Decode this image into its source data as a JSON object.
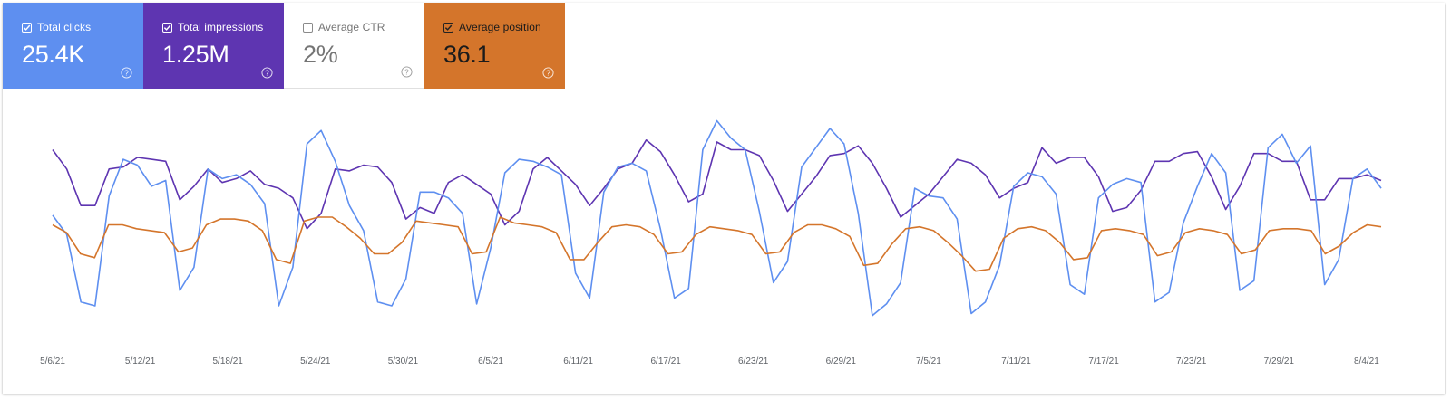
{
  "metrics": [
    {
      "label": "Total clicks",
      "value": "25.4K",
      "checked": true,
      "color": "#5e8ff0"
    },
    {
      "label": "Total impressions",
      "value": "1.25M",
      "checked": true,
      "color": "#5e35b1"
    },
    {
      "label": "Average CTR",
      "value": "2%",
      "checked": false,
      "color": "#ffffff"
    },
    {
      "label": "Average position",
      "value": "36.1",
      "checked": true,
      "color": "#d4752b"
    }
  ],
  "chart_data": {
    "type": "line",
    "x_tick_labels": [
      "5/6/21",
      "5/12/21",
      "5/18/21",
      "5/24/21",
      "5/30/21",
      "6/5/21",
      "6/11/21",
      "6/17/21",
      "6/23/21",
      "6/29/21",
      "7/5/21",
      "7/11/21",
      "7/17/21",
      "7/23/21",
      "7/29/21",
      "8/4/21"
    ],
    "x_range": [
      "5/6/21",
      "8/5/21"
    ],
    "ylim": [
      0,
      100
    ],
    "grid": false,
    "series": [
      {
        "color": "#5e35b1",
        "values": [
          81,
          71,
          52,
          52,
          71,
          72,
          77,
          76,
          75,
          55,
          62,
          71,
          64,
          66,
          70,
          63,
          61,
          56,
          40,
          48,
          71,
          70,
          73,
          72,
          64,
          45,
          51,
          48,
          64,
          68,
          63,
          58,
          42,
          49,
          71,
          77,
          70,
          63,
          52,
          61,
          71,
          74,
          86,
          80,
          68,
          54,
          58,
          85,
          81,
          81,
          78,
          65,
          49,
          58,
          67,
          78,
          79,
          83,
          74,
          61,
          46,
          52,
          58,
          67,
          76,
          74,
          68,
          56,
          61,
          64,
          82,
          74,
          77,
          77,
          67,
          49,
          51,
          60,
          75,
          75,
          79,
          80,
          67,
          50,
          62,
          79,
          79,
          75,
          75,
          55,
          55,
          66,
          66,
          68,
          65
        ],
        "range": [
          0,
          100
        ]
      },
      {
        "color": "#5e8ff0",
        "values": [
          47,
          37,
          2,
          0,
          57,
          76,
          73,
          62,
          65,
          8,
          20,
          71,
          66,
          68,
          63,
          53,
          0,
          20,
          84,
          91,
          75,
          52,
          39,
          2,
          0,
          14,
          59,
          59,
          56,
          48,
          1,
          30,
          69,
          76,
          75,
          72,
          68,
          17,
          4,
          59,
          72,
          74,
          70,
          40,
          4,
          9,
          81,
          96,
          87,
          81,
          49,
          12,
          23,
          72,
          82,
          92,
          84,
          48,
          -5,
          1,
          12,
          61,
          57,
          56,
          45,
          -4,
          2,
          21,
          62,
          69,
          67,
          58,
          11,
          6,
          56,
          63,
          66,
          64,
          2,
          7,
          43,
          62,
          79,
          69,
          8,
          13,
          82,
          89,
          74,
          83,
          11,
          24,
          66,
          71,
          61
        ],
        "range": [
          0,
          400
        ]
      },
      {
        "color": "#d4752b",
        "values": [
          42,
          38,
          27,
          25,
          42,
          42,
          40,
          39,
          38,
          28,
          30,
          42,
          45,
          45,
          44,
          39,
          24,
          22,
          44,
          46,
          46,
          41,
          35,
          27,
          27,
          33,
          44,
          43,
          42,
          41,
          27,
          28,
          46,
          43,
          42,
          41,
          38,
          24,
          24,
          33,
          41,
          42,
          41,
          37,
          27,
          28,
          37,
          41,
          40,
          39,
          37,
          27,
          28,
          38,
          42,
          42,
          40,
          36,
          21,
          22,
          32,
          40,
          41,
          39,
          33,
          26,
          18,
          19,
          35,
          40,
          41,
          39,
          33,
          24,
          25,
          39,
          40,
          39,
          37,
          26,
          28,
          38,
          40,
          39,
          37,
          27,
          29,
          39,
          40,
          40,
          39,
          27,
          31,
          38,
          42,
          41
        ],
        "range": [
          0,
          100
        ]
      }
    ]
  }
}
